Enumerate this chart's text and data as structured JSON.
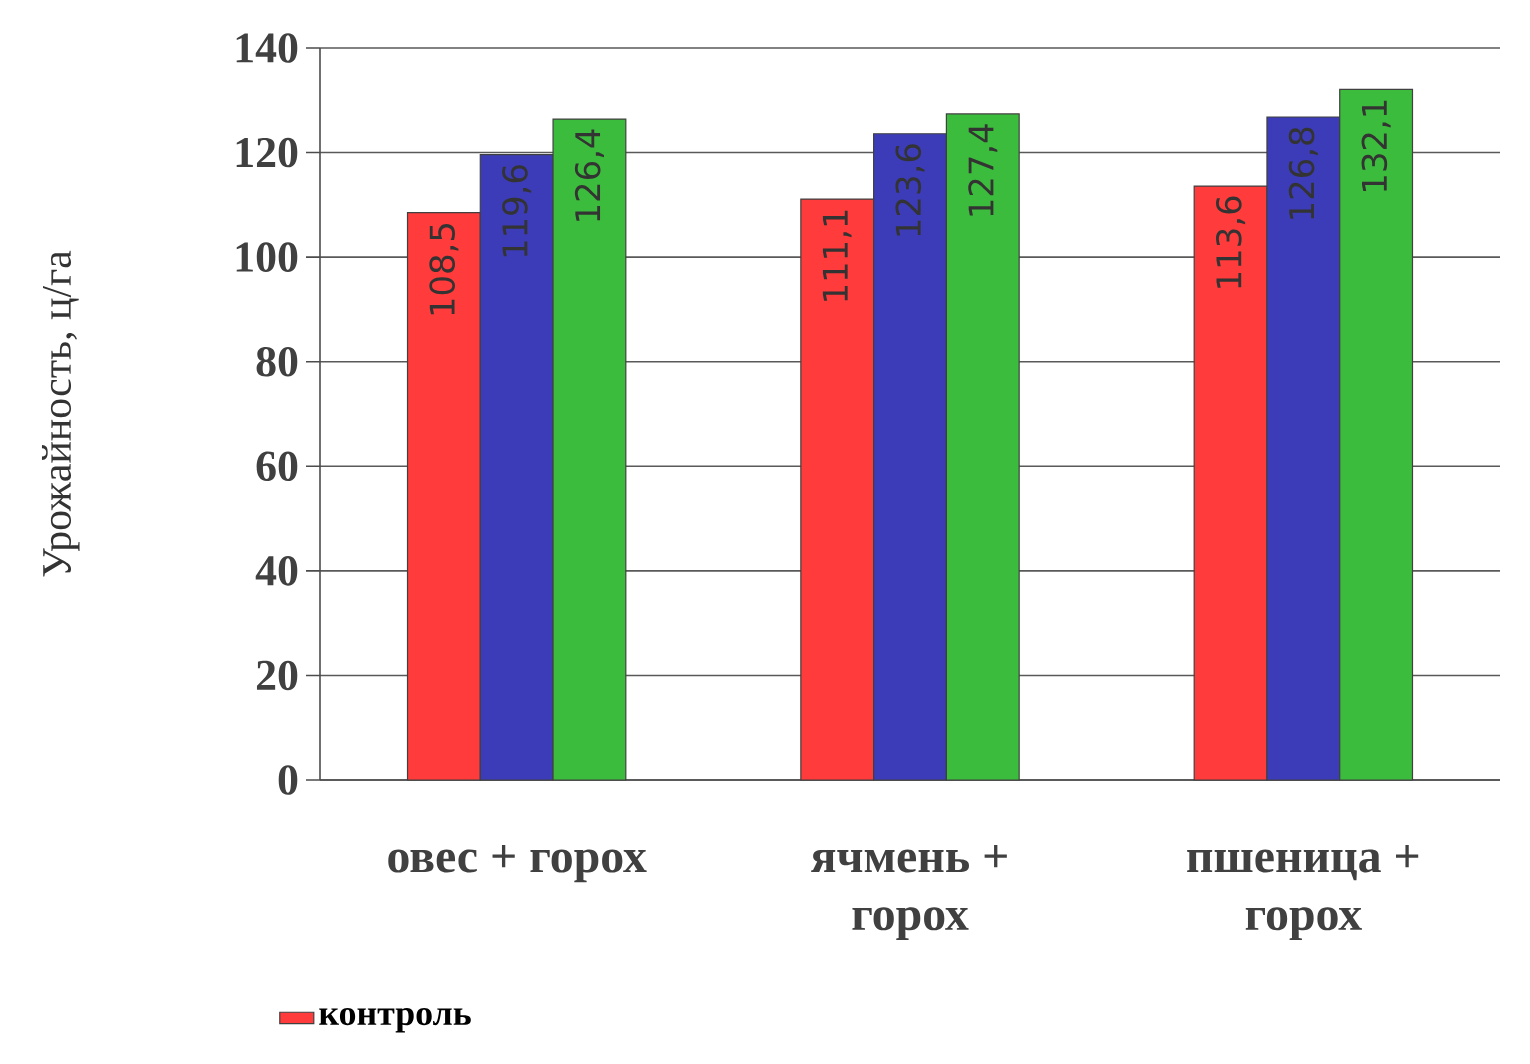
{
  "chart_data": {
    "type": "bar",
    "ylabel": "Урожайность, ц/га",
    "categories": [
      "овес + горох",
      "ячмень + горох",
      "пшеница + горох"
    ],
    "series": [
      {
        "name": "контроль",
        "color": "#ff3b3b",
        "values": [
          108.5,
          111.1,
          113.6
        ],
        "value_labels": [
          "108,5",
          "111,1",
          "113,6"
        ]
      },
      {
        "color": "#3c3cb8",
        "values": [
          119.6,
          123.6,
          126.8
        ],
        "value_labels": [
          "119,6",
          "123,6",
          "126,8"
        ]
      },
      {
        "color": "#3cbc3c",
        "values": [
          126.4,
          127.4,
          132.1
        ],
        "value_labels": [
          "126,4",
          "127,4",
          "132,1"
        ]
      }
    ],
    "ylim": [
      0,
      140
    ],
    "yticks": [
      0,
      20,
      40,
      60,
      80,
      100,
      120,
      140
    ],
    "grid": "y",
    "legend": "bottom"
  }
}
